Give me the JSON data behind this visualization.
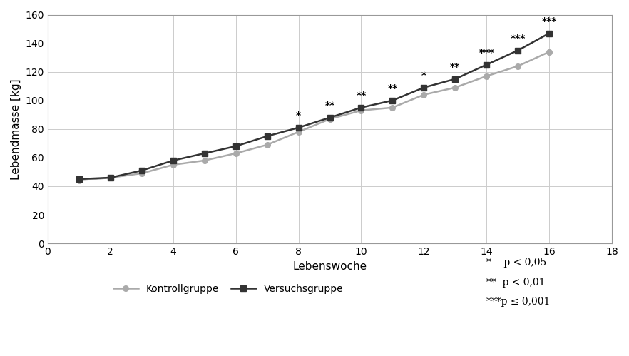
{
  "weeks": [
    1,
    2,
    3,
    4,
    5,
    6,
    7,
    8,
    9,
    10,
    11,
    12,
    13,
    14,
    15,
    16
  ],
  "kontroll": [
    44,
    46,
    49,
    55,
    58,
    63,
    69,
    78,
    87,
    93,
    95,
    104,
    109,
    117,
    124,
    134
  ],
  "versuch": [
    45,
    46,
    51,
    58,
    63,
    68,
    75,
    81,
    88,
    95,
    100,
    109,
    115,
    125,
    135,
    147
  ],
  "kontroll_color": "#aaaaaa",
  "versuch_color": "#333333",
  "xlabel": "Lebenswoche",
  "ylabel": "Lebendmasse [kg]",
  "xlim": [
    0,
    18
  ],
  "ylim": [
    0,
    160
  ],
  "xticks": [
    0,
    2,
    4,
    6,
    8,
    10,
    12,
    14,
    16,
    18
  ],
  "yticks": [
    0,
    20,
    40,
    60,
    80,
    100,
    120,
    140,
    160
  ],
  "legend_kontroll": "Kontrollgruppe",
  "legend_versuch": "Versuchsgruppe",
  "significance": {
    "8": "*",
    "9": "**",
    "10": "**",
    "11": "**",
    "12": "*",
    "13": "**",
    "14": "***",
    "15": "***",
    "16": "***"
  },
  "sig_y_above": 5,
  "bg_color": "#ffffff",
  "grid_color": "#cccccc",
  "ann_lines": [
    "*    p < 0,05",
    "**  p < 0,01",
    "***p ≤ 0,001"
  ]
}
